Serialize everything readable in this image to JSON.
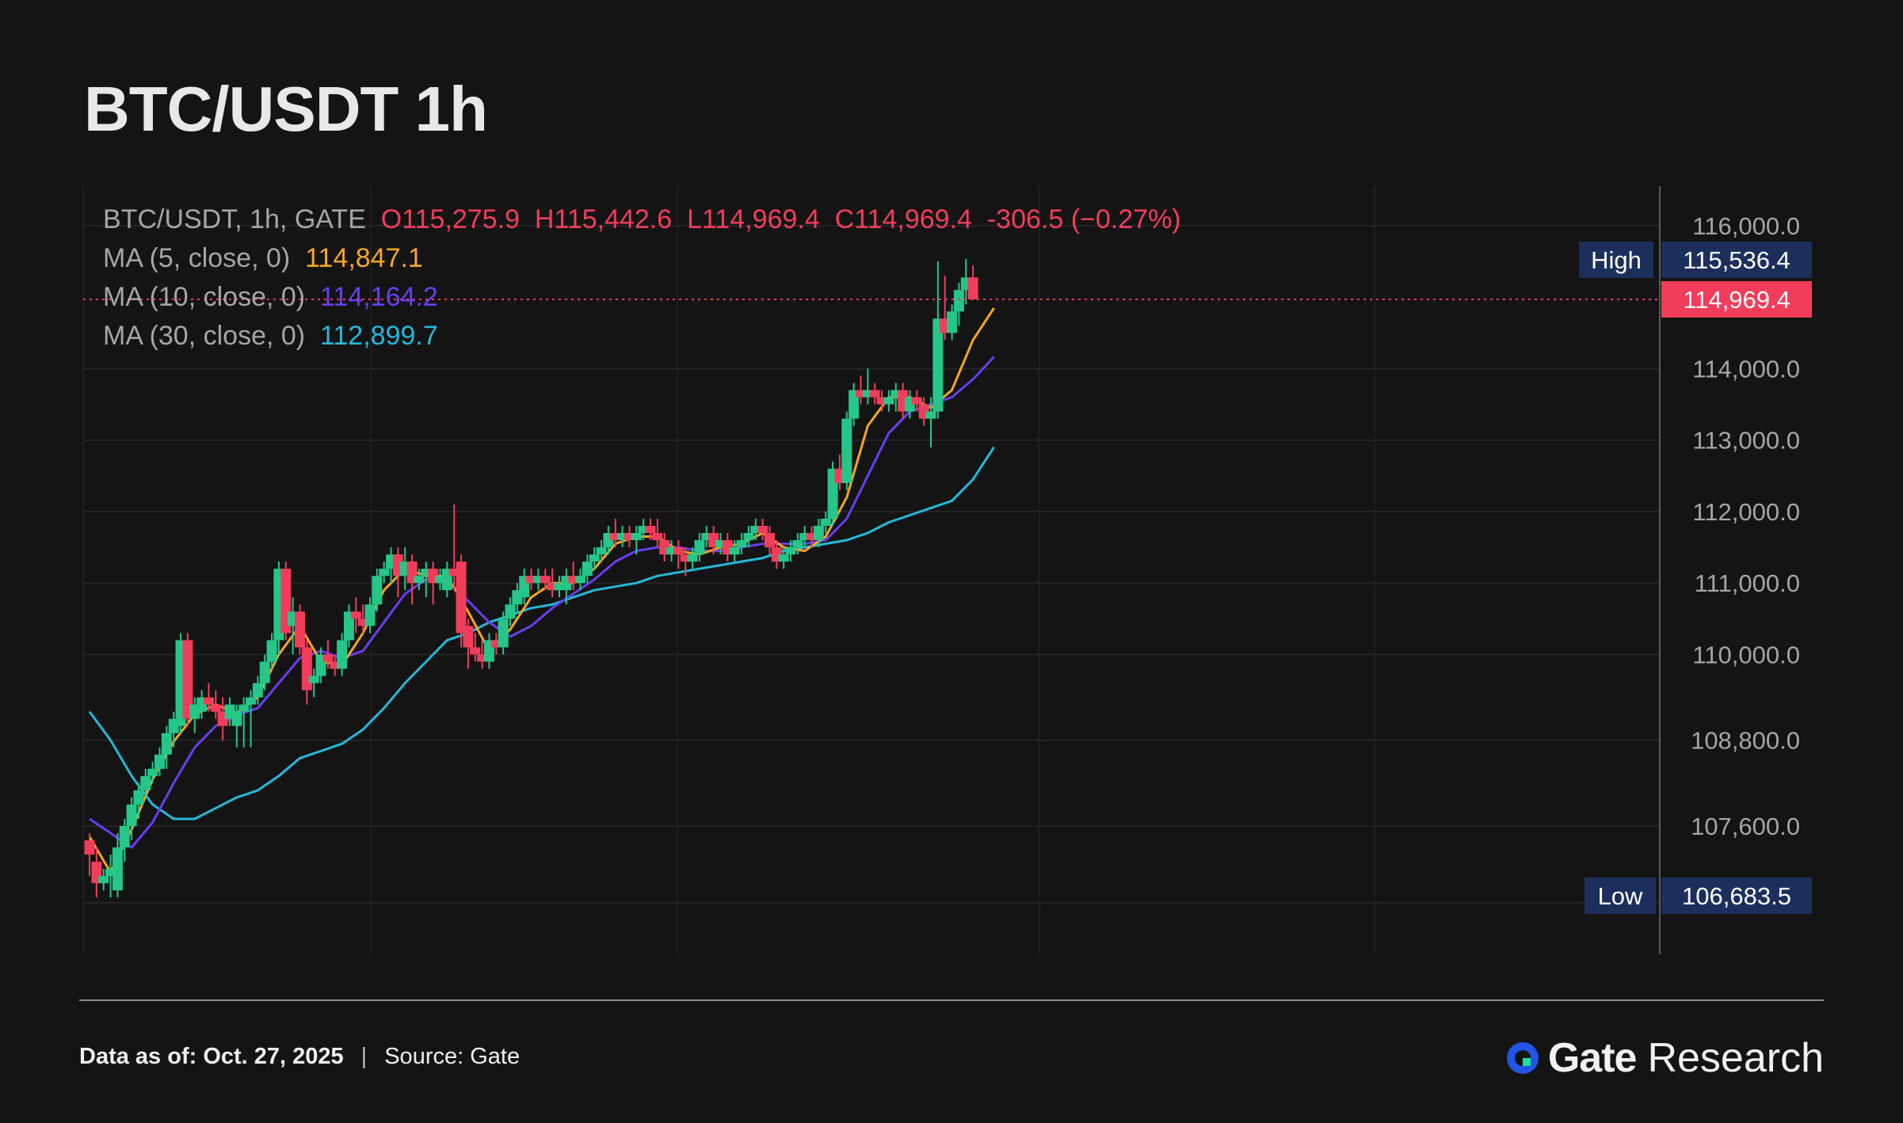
{
  "title": "BTC/USDT 1h",
  "legend": {
    "pair": "BTC/USDT, 1h, GATE",
    "open": "O115,275.9",
    "high": "H115,442.6",
    "low": "L114,969.4",
    "close": "C114,969.4",
    "change": "-306.5 (−0.27%)",
    "ma5_label": "MA (5, close, 0)",
    "ma5_value": "114,847.1",
    "ma10_label": "MA (10, close, 0)",
    "ma10_value": "114,164.2",
    "ma30_label": "MA (30, close, 0)",
    "ma30_value": "112,899.7"
  },
  "badges": {
    "high_label": "High",
    "high_value": "115,536.4",
    "low_label": "Low",
    "low_value": "106,683.5",
    "last_price": "114,969.4"
  },
  "footer": {
    "data_as_of_label": "Data as of:",
    "data_as_of_value": "Oct. 27, 2025",
    "source_label": "Source:",
    "source_value": "Gate",
    "brand_name": "Gate",
    "brand_sub": "Research"
  },
  "colors": {
    "up": "#26c689",
    "down": "#f23d5a",
    "ma5": "#f5a623",
    "ma10": "#6a3df0",
    "ma30": "#26b8d9",
    "badge_bg": "#1c2f5c"
  },
  "chart_data": {
    "type": "candlestick",
    "title": "BTC/USDT 1h",
    "y_ticks": [
      116000,
      114000,
      113000,
      112000,
      111000,
      110000,
      108800,
      107600
    ],
    "y_tick_labels": [
      "116,000.0",
      "114,000.0",
      "113,000.0",
      "112,000.0",
      "111,000.0",
      "110,000.0",
      "108,800.0",
      "107,600.0"
    ],
    "ylim": [
      106200,
      116600
    ],
    "grid": true,
    "last_price": 114969.4,
    "candles": [
      [
        107400,
        107500,
        106900,
        107200
      ],
      [
        107100,
        107300,
        106600,
        106800
      ],
      [
        106800,
        107000,
        106700,
        106900
      ],
      [
        106900,
        107200,
        106600,
        107000
      ],
      [
        106700,
        107500,
        106600,
        107300
      ],
      [
        107300,
        107700,
        107100,
        107600
      ],
      [
        107600,
        108000,
        107400,
        107900
      ],
      [
        107900,
        108200,
        107700,
        108100
      ],
      [
        108100,
        108400,
        108000,
        108300
      ],
      [
        108300,
        108500,
        108200,
        108400
      ],
      [
        108400,
        108700,
        108300,
        108600
      ],
      [
        108600,
        109000,
        108400,
        108900
      ],
      [
        108900,
        109200,
        108700,
        109100
      ],
      [
        109000,
        110300,
        108900,
        110200
      ],
      [
        110200,
        110300,
        109000,
        109100
      ],
      [
        109100,
        109400,
        108900,
        109300
      ],
      [
        109200,
        109500,
        109100,
        109400
      ],
      [
        109400,
        109600,
        109200,
        109300
      ],
      [
        109300,
        109500,
        109100,
        109200
      ],
      [
        109200,
        109400,
        108800,
        109000
      ],
      [
        109100,
        109400,
        109000,
        109300
      ],
      [
        109000,
        109300,
        108700,
        109200
      ],
      [
        109200,
        109400,
        108700,
        109300
      ],
      [
        109300,
        109500,
        108700,
        109400
      ],
      [
        109400,
        109700,
        109300,
        109600
      ],
      [
        109600,
        110000,
        109500,
        109900
      ],
      [
        109900,
        110300,
        109800,
        110200
      ],
      [
        110200,
        111300,
        110000,
        111200
      ],
      [
        111200,
        111300,
        110200,
        110300
      ],
      [
        110400,
        110800,
        110000,
        110600
      ],
      [
        110600,
        110700,
        110000,
        110100
      ],
      [
        110100,
        110200,
        109300,
        109500
      ],
      [
        109600,
        109800,
        109400,
        109700
      ],
      [
        109700,
        110100,
        109600,
        110000
      ],
      [
        110000,
        110200,
        109800,
        109900
      ],
      [
        109900,
        110000,
        109700,
        109800
      ],
      [
        109800,
        110300,
        109700,
        110200
      ],
      [
        110200,
        110700,
        110100,
        110600
      ],
      [
        110600,
        110800,
        110300,
        110500
      ],
      [
        110500,
        110700,
        110300,
        110400
      ],
      [
        110400,
        110800,
        110300,
        110700
      ],
      [
        110700,
        111200,
        110600,
        111100
      ],
      [
        111100,
        111300,
        111000,
        111200
      ],
      [
        111200,
        111500,
        111000,
        111400
      ],
      [
        111400,
        111500,
        110800,
        111100
      ],
      [
        111100,
        111500,
        110900,
        111300
      ],
      [
        111300,
        111400,
        110700,
        111000
      ],
      [
        111000,
        111200,
        110900,
        111100
      ],
      [
        111100,
        111300,
        110800,
        111200
      ],
      [
        111200,
        111300,
        110700,
        111000
      ],
      [
        111000,
        111200,
        110900,
        111100
      ],
      [
        110900,
        111300,
        110800,
        111200
      ],
      [
        111200,
        112100,
        110900,
        111100
      ],
      [
        111300,
        111400,
        110100,
        110300
      ],
      [
        110400,
        110500,
        109800,
        110100
      ],
      [
        110100,
        110300,
        109900,
        110000
      ],
      [
        110000,
        110200,
        109800,
        109900
      ],
      [
        109900,
        110300,
        109800,
        110200
      ],
      [
        110200,
        110300,
        110000,
        110100
      ],
      [
        110100,
        110600,
        110000,
        110500
      ],
      [
        110500,
        110800,
        110400,
        110700
      ],
      [
        110700,
        111000,
        110600,
        110900
      ],
      [
        110800,
        111200,
        110700,
        111100
      ],
      [
        111100,
        111200,
        110900,
        111000
      ],
      [
        111000,
        111200,
        110900,
        111100
      ],
      [
        111100,
        111200,
        110900,
        111000
      ],
      [
        111000,
        111200,
        110800,
        110900
      ],
      [
        110900,
        111100,
        110800,
        111000
      ],
      [
        110900,
        111200,
        110700,
        111100
      ],
      [
        111100,
        111300,
        110900,
        111000
      ],
      [
        111000,
        111200,
        110900,
        111100
      ],
      [
        111100,
        111400,
        111000,
        111300
      ],
      [
        111300,
        111500,
        111200,
        111400
      ],
      [
        111400,
        111600,
        111300,
        111500
      ],
      [
        111500,
        111800,
        111400,
        111700
      ],
      [
        111700,
        111900,
        111500,
        111600
      ],
      [
        111600,
        111800,
        111500,
        111700
      ],
      [
        111700,
        111800,
        111500,
        111600
      ],
      [
        111600,
        111800,
        111400,
        111700
      ],
      [
        111700,
        111900,
        111600,
        111800
      ],
      [
        111800,
        111900,
        111600,
        111700
      ],
      [
        111700,
        111900,
        111500,
        111600
      ],
      [
        111600,
        111700,
        111300,
        111400
      ],
      [
        111400,
        111600,
        111300,
        111500
      ],
      [
        111500,
        111600,
        111200,
        111400
      ],
      [
        111400,
        111500,
        111100,
        111300
      ],
      [
        111300,
        111500,
        111200,
        111400
      ],
      [
        111400,
        111700,
        111300,
        111600
      ],
      [
        111600,
        111800,
        111500,
        111700
      ],
      [
        111700,
        111800,
        111400,
        111500
      ],
      [
        111500,
        111700,
        111400,
        111600
      ],
      [
        111600,
        111700,
        111300,
        111400
      ],
      [
        111400,
        111600,
        111300,
        111500
      ],
      [
        111500,
        111700,
        111400,
        111600
      ],
      [
        111600,
        111800,
        111500,
        111700
      ],
      [
        111700,
        111900,
        111600,
        111800
      ],
      [
        111800,
        111900,
        111600,
        111700
      ],
      [
        111700,
        111800,
        111400,
        111500
      ],
      [
        111500,
        111600,
        111200,
        111300
      ],
      [
        111300,
        111500,
        111200,
        111400
      ],
      [
        111400,
        111600,
        111300,
        111500
      ],
      [
        111500,
        111700,
        111400,
        111600
      ],
      [
        111600,
        111800,
        111500,
        111700
      ],
      [
        111700,
        111800,
        111500,
        111600
      ],
      [
        111600,
        111900,
        111500,
        111800
      ],
      [
        111800,
        112000,
        111700,
        111900
      ],
      [
        111900,
        112700,
        111800,
        112600
      ],
      [
        112600,
        112800,
        112300,
        112400
      ],
      [
        112400,
        113400,
        112300,
        113300
      ],
      [
        113300,
        113800,
        113200,
        113700
      ],
      [
        113700,
        113900,
        113500,
        113600
      ],
      [
        113600,
        114000,
        113500,
        113700
      ],
      [
        113700,
        113800,
        113500,
        113600
      ],
      [
        113600,
        113700,
        113400,
        113500
      ],
      [
        113500,
        113700,
        113400,
        113600
      ],
      [
        113600,
        113800,
        113400,
        113700
      ],
      [
        113700,
        113800,
        113300,
        113400
      ],
      [
        113400,
        113700,
        113300,
        113600
      ],
      [
        113600,
        113700,
        113400,
        113500
      ],
      [
        113500,
        113600,
        113200,
        113300
      ],
      [
        113300,
        113600,
        112900,
        113400
      ],
      [
        113400,
        115500,
        113300,
        114700
      ],
      [
        114700,
        115300,
        114400,
        114500
      ],
      [
        114500,
        114900,
        114400,
        114800
      ],
      [
        114800,
        115200,
        114600,
        115100
      ],
      [
        115100,
        115536,
        114900,
        115276
      ],
      [
        115276,
        115443,
        114969,
        114969
      ]
    ],
    "ma5": [
      [
        0,
        107450
      ],
      [
        3,
        106950
      ],
      [
        6,
        107550
      ],
      [
        9,
        108250
      ],
      [
        12,
        108780
      ],
      [
        15,
        109160
      ],
      [
        18,
        109300
      ],
      [
        21,
        109180
      ],
      [
        24,
        109400
      ],
      [
        27,
        110000
      ],
      [
        30,
        110400
      ],
      [
        33,
        109900
      ],
      [
        36,
        109850
      ],
      [
        39,
        110300
      ],
      [
        42,
        110900
      ],
      [
        45,
        111200
      ],
      [
        48,
        111100
      ],
      [
        51,
        111100
      ],
      [
        54,
        110600
      ],
      [
        57,
        110050
      ],
      [
        60,
        110350
      ],
      [
        63,
        110800
      ],
      [
        66,
        111000
      ],
      [
        69,
        111000
      ],
      [
        72,
        111200
      ],
      [
        75,
        111550
      ],
      [
        78,
        111650
      ],
      [
        81,
        111650
      ],
      [
        84,
        111450
      ],
      [
        87,
        111400
      ],
      [
        90,
        111500
      ],
      [
        93,
        111550
      ],
      [
        96,
        111700
      ],
      [
        99,
        111500
      ],
      [
        102,
        111450
      ],
      [
        105,
        111650
      ],
      [
        108,
        112200
      ],
      [
        111,
        113200
      ],
      [
        114,
        113600
      ],
      [
        117,
        113600
      ],
      [
        120,
        113450
      ],
      [
        123,
        113700
      ],
      [
        126,
        114400
      ],
      [
        129,
        114847
      ]
    ],
    "ma10": [
      [
        0,
        107700
      ],
      [
        3,
        107500
      ],
      [
        6,
        107300
      ],
      [
        9,
        107650
      ],
      [
        12,
        108200
      ],
      [
        15,
        108700
      ],
      [
        18,
        109000
      ],
      [
        21,
        109150
      ],
      [
        24,
        109250
      ],
      [
        27,
        109600
      ],
      [
        30,
        109950
      ],
      [
        33,
        110050
      ],
      [
        36,
        109950
      ],
      [
        39,
        110050
      ],
      [
        42,
        110450
      ],
      [
        45,
        110850
      ],
      [
        48,
        111050
      ],
      [
        51,
        111050
      ],
      [
        54,
        110750
      ],
      [
        57,
        110450
      ],
      [
        60,
        110250
      ],
      [
        63,
        110400
      ],
      [
        66,
        110650
      ],
      [
        69,
        110850
      ],
      [
        72,
        111050
      ],
      [
        75,
        111300
      ],
      [
        78,
        111450
      ],
      [
        81,
        111500
      ],
      [
        84,
        111500
      ],
      [
        87,
        111450
      ],
      [
        90,
        111450
      ],
      [
        93,
        111500
      ],
      [
        96,
        111550
      ],
      [
        99,
        111550
      ],
      [
        102,
        111550
      ],
      [
        105,
        111600
      ],
      [
        108,
        111900
      ],
      [
        111,
        112500
      ],
      [
        114,
        113100
      ],
      [
        117,
        113400
      ],
      [
        120,
        113500
      ],
      [
        123,
        113600
      ],
      [
        126,
        113850
      ],
      [
        129,
        114164
      ]
    ],
    "ma30": [
      [
        0,
        109200
      ],
      [
        3,
        108800
      ],
      [
        6,
        108300
      ],
      [
        9,
        107900
      ],
      [
        12,
        107700
      ],
      [
        15,
        107700
      ],
      [
        18,
        107850
      ],
      [
        21,
        108000
      ],
      [
        24,
        108100
      ],
      [
        27,
        108300
      ],
      [
        30,
        108550
      ],
      [
        33,
        108650
      ],
      [
        36,
        108750
      ],
      [
        39,
        108950
      ],
      [
        42,
        109250
      ],
      [
        45,
        109600
      ],
      [
        48,
        109900
      ],
      [
        51,
        110200
      ],
      [
        54,
        110300
      ],
      [
        57,
        110450
      ],
      [
        60,
        110550
      ],
      [
        63,
        110650
      ],
      [
        66,
        110700
      ],
      [
        69,
        110800
      ],
      [
        72,
        110900
      ],
      [
        75,
        110950
      ],
      [
        78,
        111000
      ],
      [
        81,
        111100
      ],
      [
        84,
        111150
      ],
      [
        87,
        111200
      ],
      [
        90,
        111250
      ],
      [
        93,
        111300
      ],
      [
        96,
        111350
      ],
      [
        99,
        111450
      ],
      [
        102,
        111500
      ],
      [
        105,
        111550
      ],
      [
        108,
        111600
      ],
      [
        111,
        111700
      ],
      [
        114,
        111850
      ],
      [
        117,
        111950
      ],
      [
        120,
        112050
      ],
      [
        123,
        112150
      ],
      [
        126,
        112450
      ],
      [
        129,
        112900
      ]
    ]
  }
}
